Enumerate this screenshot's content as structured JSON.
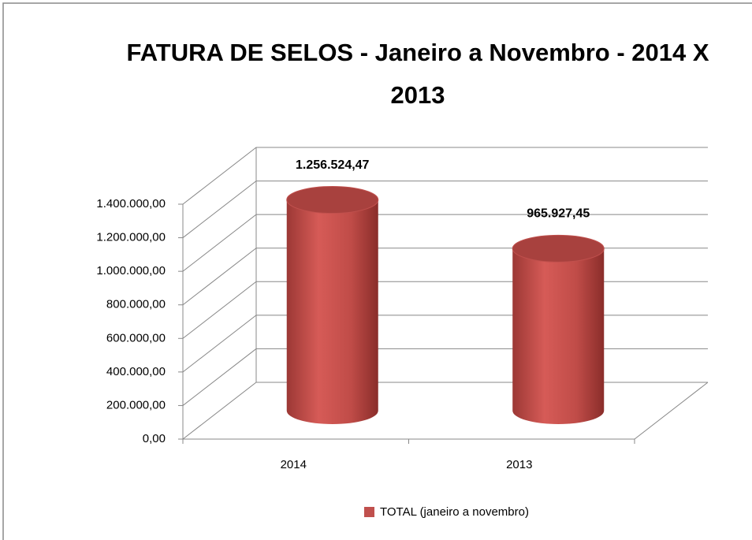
{
  "chart_data": {
    "type": "bar",
    "title": "FATURA DE SELOS - Janeiro a Novembro - 2014 X 2013",
    "categories": [
      "2014",
      "2013"
    ],
    "series": [
      {
        "name": "TOTAL (janeiro a novembro)",
        "color": "#c0504d",
        "values": [
          1256524.47,
          965927.45
        ],
        "value_labels": [
          "1.256.524,47",
          "965.927,45"
        ]
      }
    ],
    "ylim": [
      0,
      1400000
    ],
    "yticks": [
      {
        "value": 0,
        "label": "0,00"
      },
      {
        "value": 200000,
        "label": "200.000,00"
      },
      {
        "value": 400000,
        "label": "400.000,00"
      },
      {
        "value": 600000,
        "label": "600.000,00"
      },
      {
        "value": 800000,
        "label": "800.000,00"
      },
      {
        "value": 1000000,
        "label": "1.000.000,00"
      },
      {
        "value": 1200000,
        "label": "1.200.000,00"
      },
      {
        "value": 1400000,
        "label": "1.400.000,00"
      }
    ],
    "grid": true,
    "legend": "bottom"
  }
}
